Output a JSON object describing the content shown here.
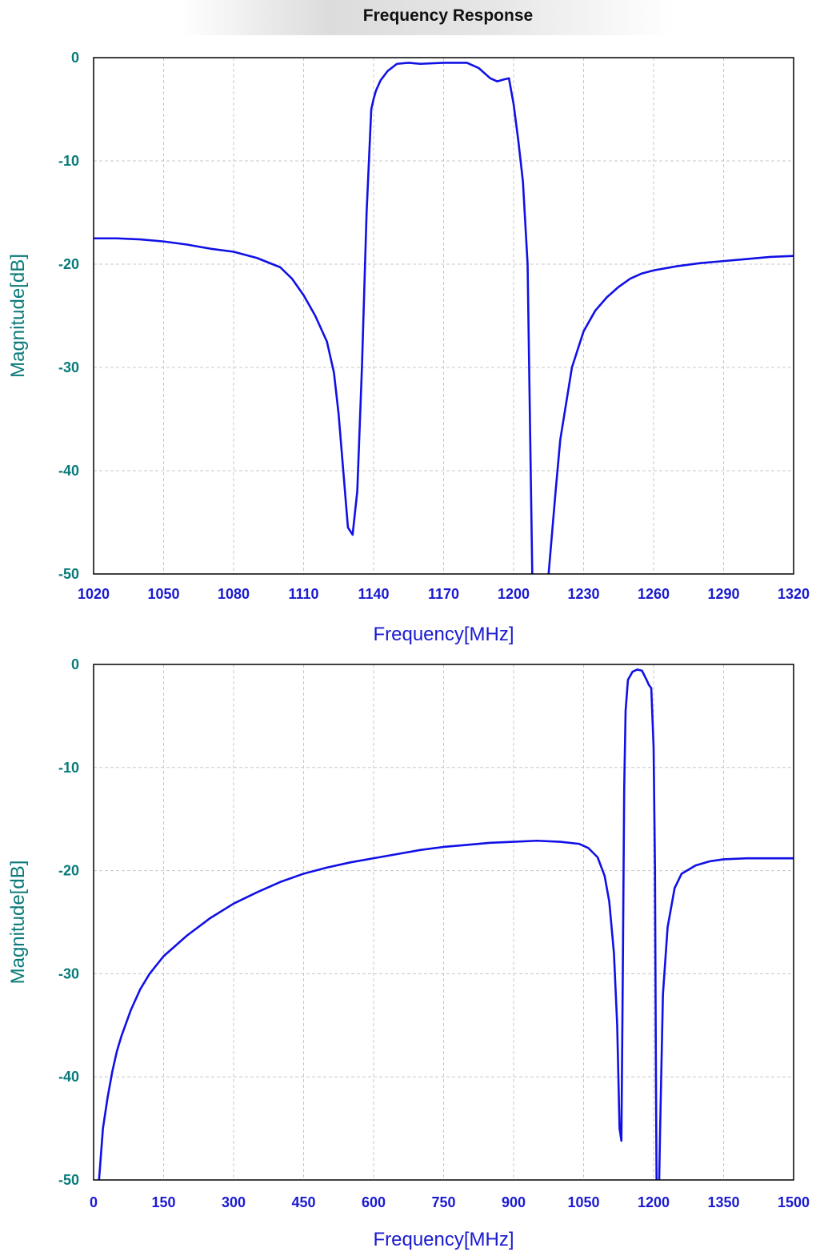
{
  "title": "Frequency Response",
  "colors": {
    "curve": "#1010e6",
    "y_tick": "#0a7a7a",
    "x_tick": "#1a1ad0",
    "y_label": "#0a7a7a",
    "x_label": "#1a1ad0",
    "grid": "#c8c8c8",
    "frame": "#000000"
  },
  "chart_data": [
    {
      "type": "line",
      "xlabel": "Frequency[MHz]",
      "ylabel": "Magnitude[dB]",
      "xlim": [
        1020,
        1320
      ],
      "ylim": [
        -50,
        0
      ],
      "xticks": [
        1020,
        1050,
        1080,
        1110,
        1140,
        1170,
        1200,
        1230,
        1260,
        1290,
        1320
      ],
      "yticks": [
        0,
        -10,
        -20,
        -30,
        -40,
        -50
      ],
      "grid": true,
      "series": [
        {
          "x": [
            1020,
            1030,
            1040,
            1050,
            1060,
            1070,
            1080,
            1090,
            1100,
            1105,
            1110,
            1115,
            1120,
            1123,
            1125,
            1127,
            1129,
            1131,
            1133,
            1135,
            1137,
            1139,
            1140,
            1141,
            1143,
            1146,
            1150,
            1155,
            1160,
            1170,
            1180,
            1185,
            1190,
            1193,
            1196,
            1198,
            1200,
            1202,
            1204,
            1206,
            1207,
            1208,
            1209,
            1210,
            1214,
            1215,
            1218,
            1220,
            1225,
            1230,
            1235,
            1240,
            1245,
            1250,
            1255,
            1260,
            1270,
            1280,
            1290,
            1300,
            1310,
            1320
          ],
          "y": [
            -17.5,
            -17.5,
            -17.6,
            -17.8,
            -18.1,
            -18.5,
            -18.8,
            -19.4,
            -20.3,
            -21.4,
            -23.0,
            -25.0,
            -27.5,
            -30.5,
            -34.5,
            -40.0,
            -45.5,
            -46.2,
            -42.0,
            -30.0,
            -15.0,
            -5.0,
            -4.0,
            -3.2,
            -2.2,
            -1.3,
            -0.6,
            -0.5,
            -0.6,
            -0.5,
            -0.5,
            -1.0,
            -2.0,
            -2.3,
            -2.1,
            -2.0,
            -4.5,
            -8.0,
            -12.0,
            -20.0,
            -35.0,
            -50.0,
            -55.0,
            -58.0,
            -55.0,
            -50.0,
            -42.0,
            -37.0,
            -30.0,
            -26.5,
            -24.5,
            -23.2,
            -22.2,
            -21.4,
            -20.9,
            -20.6,
            -20.2,
            -19.9,
            -19.7,
            -19.5,
            -19.3,
            -19.2
          ]
        }
      ]
    },
    {
      "type": "line",
      "xlabel": "Frequency[MHz]",
      "ylabel": "Magnitude[dB]",
      "xlim": [
        0,
        1500
      ],
      "ylim": [
        -50,
        0
      ],
      "xticks": [
        0,
        150,
        300,
        450,
        600,
        750,
        900,
        1050,
        1200,
        1350,
        1500
      ],
      "yticks": [
        0,
        -10,
        -20,
        -30,
        -40,
        -50
      ],
      "grid": true,
      "series": [
        {
          "x": [
            10,
            15,
            20,
            30,
            40,
            50,
            60,
            80,
            100,
            120,
            150,
            200,
            250,
            300,
            350,
            400,
            450,
            500,
            550,
            600,
            650,
            700,
            750,
            800,
            850,
            900,
            950,
            1000,
            1040,
            1060,
            1080,
            1095,
            1105,
            1115,
            1122,
            1127,
            1131,
            1134,
            1137,
            1140,
            1145,
            1155,
            1165,
            1175,
            1185,
            1190,
            1195,
            1200,
            1203,
            1205,
            1207,
            1210,
            1214,
            1220,
            1230,
            1245,
            1260,
            1290,
            1320,
            1350,
            1400,
            1450,
            1500
          ],
          "y": [
            -51,
            -48,
            -45,
            -42,
            -39.5,
            -37.5,
            -36,
            -33.5,
            -31.5,
            -30,
            -28.3,
            -26.3,
            -24.6,
            -23.2,
            -22.1,
            -21.1,
            -20.3,
            -19.7,
            -19.2,
            -18.8,
            -18.4,
            -18.0,
            -17.7,
            -17.5,
            -17.3,
            -17.2,
            -17.1,
            -17.2,
            -17.4,
            -17.8,
            -18.7,
            -20.5,
            -23.0,
            -28.0,
            -35.0,
            -45.0,
            -46.2,
            -30.0,
            -12.0,
            -4.5,
            -1.5,
            -0.7,
            -0.5,
            -0.6,
            -1.5,
            -2.0,
            -2.3,
            -8.0,
            -20.0,
            -40.0,
            -55.0,
            -55.0,
            -45.0,
            -32.0,
            -25.5,
            -21.7,
            -20.3,
            -19.5,
            -19.1,
            -18.9,
            -18.8,
            -18.8,
            -18.8
          ]
        }
      ]
    }
  ]
}
